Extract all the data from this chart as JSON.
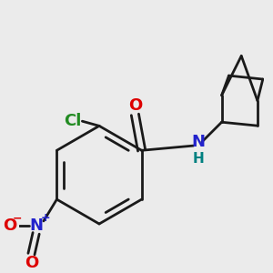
{
  "background_color": "#ebebeb",
  "line_color": "#1a1a1a",
  "bond_width": 2.0,
  "figsize": [
    3.0,
    3.0
  ],
  "dpi": 100,
  "colors": {
    "O": "#dd0000",
    "N_amide": "#2222cc",
    "N_nitro": "#2222cc",
    "Cl": "#228B22",
    "H": "#008080"
  },
  "font_size_atoms": 13,
  "font_size_charge": 10,
  "font_size_H": 11
}
